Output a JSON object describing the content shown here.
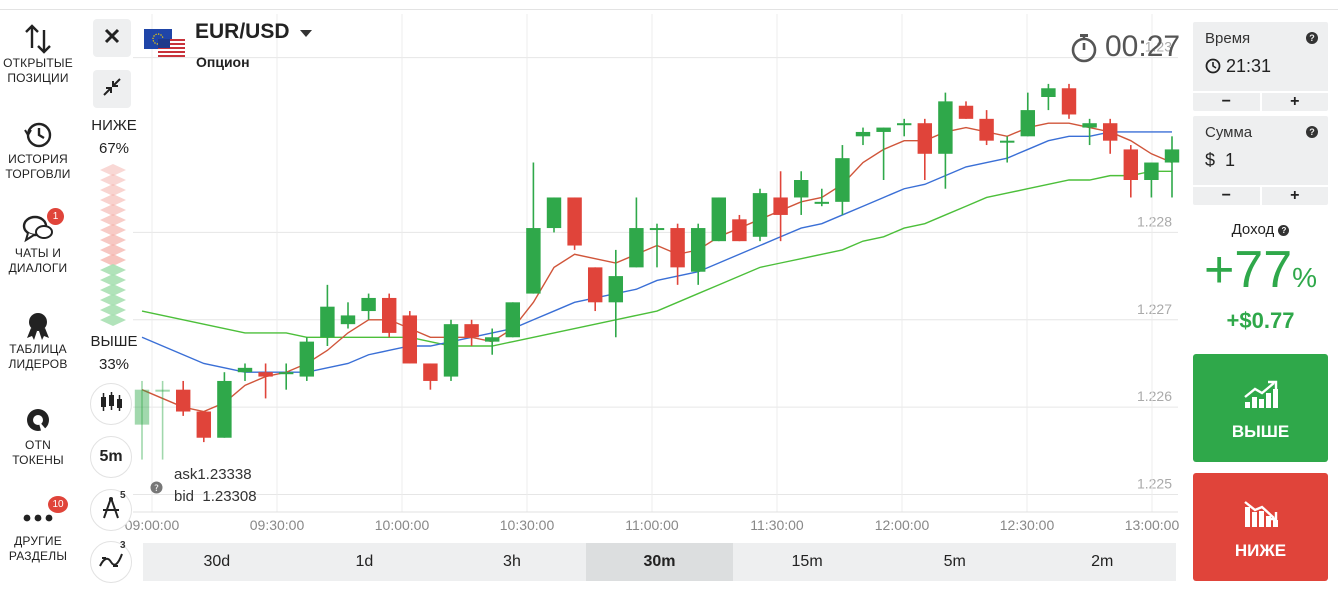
{
  "nav": {
    "items": [
      {
        "label1": "ОТКРЫТЫЕ",
        "label2": "ПОЗИЦИИ",
        "icon": "arrows-updown-icon"
      },
      {
        "label1": "ИСТОРИЯ",
        "label2": "ТОРГОВЛИ",
        "icon": "history-icon"
      },
      {
        "label1": "ЧАТЫ И",
        "label2": "ДИАЛОГИ",
        "icon": "chat-icon",
        "badge": "1"
      },
      {
        "label1": "ТАБЛИЦА",
        "label2": "ЛИДЕРОВ",
        "icon": "medal-icon"
      },
      {
        "label1": "OTN",
        "label2": "ТОКЕНЫ",
        "icon": "otn-icon"
      },
      {
        "label1": "ДРУГИЕ",
        "label2": "РАЗДЕЛЫ",
        "icon": "more-icon",
        "badge": "10"
      }
    ]
  },
  "asset": {
    "name": "EUR/USD",
    "type": "Опцион"
  },
  "timer": "00:27",
  "sentiment": {
    "down_label": "НИЖЕ",
    "down_pct": "67%",
    "up_label": "ВЫШЕ",
    "up_pct": "33%"
  },
  "chart_tools": {
    "period": "5m",
    "drawing_count": "5",
    "indicator_count": "3"
  },
  "quotes": {
    "ask": "ask1.23338",
    "bid": "bid  1.23308"
  },
  "timeframes": [
    {
      "label": "30d",
      "active": false
    },
    {
      "label": "1d",
      "active": false
    },
    {
      "label": "3h",
      "active": false
    },
    {
      "label": "30m",
      "active": true
    },
    {
      "label": "15m",
      "active": false
    },
    {
      "label": "5m",
      "active": false
    },
    {
      "label": "2m",
      "active": false
    }
  ],
  "panel": {
    "time_label": "Время",
    "time_value": "21:31",
    "amount_label": "Сумма",
    "amount_value": "$  1",
    "minus": "−",
    "plus": "+",
    "profit_label": "Доход",
    "profit_pct": "+77",
    "profit_pct_sign": "%",
    "profit_amount": "+$0.77",
    "up_button": "ВЫШЕ",
    "down_button": "НИЖЕ"
  },
  "colors": {
    "up": "#2fa84a",
    "down": "#e0443a",
    "ma_fast": "#d0553a",
    "ma_mid": "#3a6fd6",
    "ma_slow": "#4cbf3a"
  },
  "chart_data": {
    "type": "candlestick",
    "x_ticks": [
      "09:00:00",
      "09:30:00",
      "10:00:00",
      "10:30:00",
      "11:00:00",
      "11:30:00",
      "12:00:00",
      "12:30:00",
      "13:00:00"
    ],
    "y_ticks": [
      "1.23",
      "1.228",
      "1.227",
      "1.226",
      "1.225"
    ],
    "y_tick_values": [
      1.23,
      1.228,
      1.227,
      1.226,
      1.225
    ],
    "ylim": [
      1.2248,
      1.2305
    ],
    "candles": [
      {
        "o": 1.2258,
        "c": 1.2262,
        "h": 1.2263,
        "l": 1.2254
      },
      {
        "o": 1.2262,
        "c": 1.2262,
        "h": 1.2263,
        "l": 1.2254
      },
      {
        "o": 1.2262,
        "c": 1.22595,
        "h": 1.2263,
        "l": 1.2259
      },
      {
        "o": 1.22595,
        "c": 1.22565,
        "h": 1.22595,
        "l": 1.2256
      },
      {
        "o": 1.22565,
        "c": 1.2263,
        "h": 1.2264,
        "l": 1.22565
      },
      {
        "o": 1.2264,
        "c": 1.22645,
        "h": 1.2265,
        "l": 1.2263
      },
      {
        "o": 1.2264,
        "c": 1.22635,
        "h": 1.2265,
        "l": 1.2261
      },
      {
        "o": 1.2264,
        "c": 1.2264,
        "h": 1.2265,
        "l": 1.2262
      },
      {
        "o": 1.22635,
        "c": 1.22675,
        "h": 1.2268,
        "l": 1.2263
      },
      {
        "o": 1.2268,
        "c": 1.22715,
        "h": 1.2274,
        "l": 1.2267
      },
      {
        "o": 1.22695,
        "c": 1.22705,
        "h": 1.2272,
        "l": 1.2269
      },
      {
        "o": 1.2271,
        "c": 1.22725,
        "h": 1.2273,
        "l": 1.227
      },
      {
        "o": 1.22725,
        "c": 1.22685,
        "h": 1.2273,
        "l": 1.2268
      },
      {
        "o": 1.22705,
        "c": 1.2265,
        "h": 1.2271,
        "l": 1.2265
      },
      {
        "o": 1.2265,
        "c": 1.2263,
        "h": 1.2265,
        "l": 1.2262
      },
      {
        "o": 1.22635,
        "c": 1.22695,
        "h": 1.227,
        "l": 1.2263
      },
      {
        "o": 1.22695,
        "c": 1.2268,
        "h": 1.227,
        "l": 1.2267
      },
      {
        "o": 1.22675,
        "c": 1.2268,
        "h": 1.2269,
        "l": 1.2266
      },
      {
        "o": 1.2268,
        "c": 1.2272,
        "h": 1.2272,
        "l": 1.2268
      },
      {
        "o": 1.2273,
        "c": 1.22805,
        "h": 1.2288,
        "l": 1.2273
      },
      {
        "o": 1.22805,
        "c": 1.2284,
        "h": 1.2284,
        "l": 1.228
      },
      {
        "o": 1.2284,
        "c": 1.22785,
        "h": 1.2284,
        "l": 1.2278
      },
      {
        "o": 1.2276,
        "c": 1.2272,
        "h": 1.2276,
        "l": 1.2271
      },
      {
        "o": 1.2272,
        "c": 1.2275,
        "h": 1.2278,
        "l": 1.2268
      },
      {
        "o": 1.2276,
        "c": 1.22805,
        "h": 1.2284,
        "l": 1.2276
      },
      {
        "o": 1.22805,
        "c": 1.22805,
        "h": 1.2281,
        "l": 1.2276
      },
      {
        "o": 1.22805,
        "c": 1.2276,
        "h": 1.2281,
        "l": 1.2274
      },
      {
        "o": 1.22755,
        "c": 1.22805,
        "h": 1.2281,
        "l": 1.2274
      },
      {
        "o": 1.2279,
        "c": 1.2284,
        "h": 1.2284,
        "l": 1.2279
      },
      {
        "o": 1.22815,
        "c": 1.2279,
        "h": 1.2282,
        "l": 1.2279
      },
      {
        "o": 1.22795,
        "c": 1.22845,
        "h": 1.2285,
        "l": 1.2279
      },
      {
        "o": 1.2284,
        "c": 1.2282,
        "h": 1.2287,
        "l": 1.2279
      },
      {
        "o": 1.2284,
        "c": 1.2286,
        "h": 1.2287,
        "l": 1.2282
      },
      {
        "o": 1.22835,
        "c": 1.22835,
        "h": 1.2285,
        "l": 1.2283
      },
      {
        "o": 1.22835,
        "c": 1.22885,
        "h": 1.229,
        "l": 1.2282
      },
      {
        "o": 1.2291,
        "c": 1.22915,
        "h": 1.2292,
        "l": 1.229
      },
      {
        "o": 1.22915,
        "c": 1.2292,
        "h": 1.2292,
        "l": 1.2286
      },
      {
        "o": 1.22925,
        "c": 1.22925,
        "h": 1.2293,
        "l": 1.2291
      },
      {
        "o": 1.22925,
        "c": 1.2289,
        "h": 1.2293,
        "l": 1.2286
      },
      {
        "o": 1.2289,
        "c": 1.2295,
        "h": 1.2296,
        "l": 1.2285
      },
      {
        "o": 1.22945,
        "c": 1.2293,
        "h": 1.2295,
        "l": 1.2293
      },
      {
        "o": 1.2293,
        "c": 1.22905,
        "h": 1.2294,
        "l": 1.229
      },
      {
        "o": 1.22905,
        "c": 1.22905,
        "h": 1.2291,
        "l": 1.2288
      },
      {
        "o": 1.2291,
        "c": 1.2294,
        "h": 1.2296,
        "l": 1.2291
      },
      {
        "o": 1.22955,
        "c": 1.22965,
        "h": 1.2297,
        "l": 1.2294
      },
      {
        "o": 1.22965,
        "c": 1.22935,
        "h": 1.2297,
        "l": 1.2293
      },
      {
        "o": 1.2292,
        "c": 1.22925,
        "h": 1.2293,
        "l": 1.229
      },
      {
        "o": 1.22925,
        "c": 1.22905,
        "h": 1.2293,
        "l": 1.2289
      },
      {
        "o": 1.22895,
        "c": 1.2286,
        "h": 1.229,
        "l": 1.2284
      },
      {
        "o": 1.2286,
        "c": 1.2288,
        "h": 1.2288,
        "l": 1.2284
      },
      {
        "o": 1.2288,
        "c": 1.22895,
        "h": 1.2291,
        "l": 1.2284
      }
    ],
    "ma_fast": [
      1.2262,
      1.2261,
      1.226,
      1.22595,
      1.22605,
      1.22625,
      1.22635,
      1.2264,
      1.2265,
      1.22665,
      1.22685,
      1.227,
      1.227,
      1.2269,
      1.2268,
      1.2268,
      1.2268,
      1.22675,
      1.2269,
      1.2272,
      1.2276,
      1.22775,
      1.2277,
      1.22765,
      1.22775,
      1.22785,
      1.22775,
      1.2278,
      1.22795,
      1.22805,
      1.22815,
      1.22825,
      1.22835,
      1.2284,
      1.22855,
      1.2288,
      1.22895,
      1.22905,
      1.22905,
      1.22915,
      1.2292,
      1.22915,
      1.2291,
      1.2292,
      1.22925,
      1.22925,
      1.2292,
      1.22915,
      1.22905,
      1.2289,
      1.2288
    ],
    "ma_mid": [
      1.2268,
      1.2267,
      1.2266,
      1.2265,
      1.22645,
      1.2264,
      1.2264,
      1.2264,
      1.2264,
      1.22645,
      1.2265,
      1.2266,
      1.22665,
      1.2267,
      1.2267,
      1.22675,
      1.2268,
      1.22685,
      1.2269,
      1.227,
      1.2271,
      1.2272,
      1.22725,
      1.2273,
      1.22735,
      1.22745,
      1.2275,
      1.22755,
      1.22765,
      1.22775,
      1.22785,
      1.22795,
      1.22805,
      1.2281,
      1.2282,
      1.2283,
      1.2284,
      1.2285,
      1.22855,
      1.22865,
      1.22875,
      1.2288,
      1.22885,
      1.22895,
      1.22905,
      1.2291,
      1.2291,
      1.22915,
      1.22915,
      1.22915,
      1.22915
    ],
    "ma_slow": [
      1.2271,
      1.22705,
      1.227,
      1.22695,
      1.2269,
      1.22685,
      1.22685,
      1.22685,
      1.2268,
      1.2268,
      1.2268,
      1.2268,
      1.2268,
      1.2268,
      1.22675,
      1.2267,
      1.2267,
      1.2267,
      1.22675,
      1.2268,
      1.22685,
      1.2269,
      1.22695,
      1.227,
      1.22705,
      1.2271,
      1.2272,
      1.2273,
      1.2274,
      1.2275,
      1.2276,
      1.22765,
      1.2277,
      1.22775,
      1.2278,
      1.2279,
      1.22795,
      1.22805,
      1.2281,
      1.2282,
      1.2283,
      1.2284,
      1.22845,
      1.2285,
      1.22855,
      1.2286,
      1.2286,
      1.22865,
      1.22865,
      1.2287,
      1.2287
    ]
  }
}
